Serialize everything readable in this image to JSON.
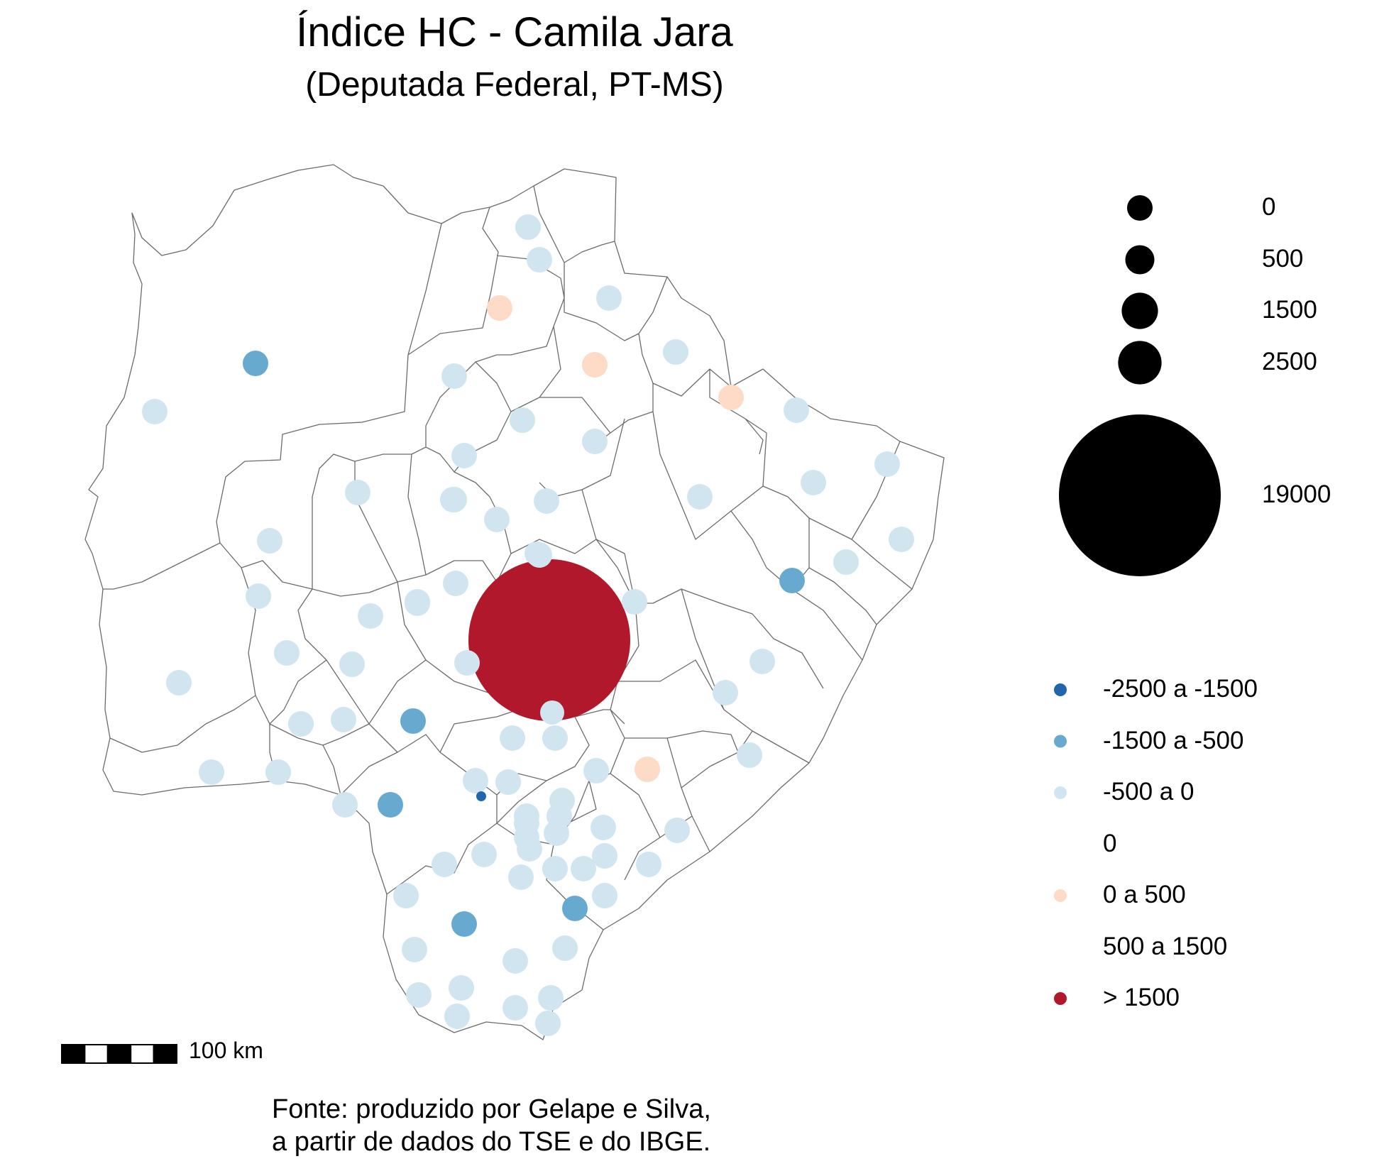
{
  "title": "Índice HC - Camila Jara",
  "subtitle": "(Deputada Federal, PT-MS)",
  "size_legend": {
    "entries": [
      {
        "label": "0",
        "value": 0
      },
      {
        "label": "500",
        "value": 500
      },
      {
        "label": "1500",
        "value": 1500
      },
      {
        "label": "2500",
        "value": 2500
      },
      {
        "label": "19000",
        "value": 19000
      }
    ]
  },
  "color_legend": {
    "entries": [
      {
        "label": "-2500 a -1500",
        "color": "#2166ac"
      },
      {
        "label": "-1500 a -500",
        "color": "#67a9cf"
      },
      {
        "label": "-500 a 0",
        "color": "#d1e5f0"
      },
      {
        "label": "0",
        "color": "#ffffff"
      },
      {
        "label": "0 a 500",
        "color": "#fddbc7"
      },
      {
        "label": "500 a 1500",
        "color": "#ffffff"
      },
      {
        "label": "> 1500",
        "color": "#b2182b"
      }
    ]
  },
  "scale_bar": {
    "label": "100 km"
  },
  "caption": {
    "line1": "Fonte: produzido por Gelape e Silva,",
    "line2": "a partir de dados do TSE e do IBGE."
  },
  "chart_data": {
    "type": "map",
    "region": "Mato Grosso do Sul",
    "highlight": {
      "category": "> 1500",
      "size_value": 19000
    },
    "category_counts": {
      "-2500 a -1500": 1,
      "-1500 a -500": 6,
      "-500 a 0": 66,
      "0 a 500": 4,
      "> 1500": 1
    }
  }
}
